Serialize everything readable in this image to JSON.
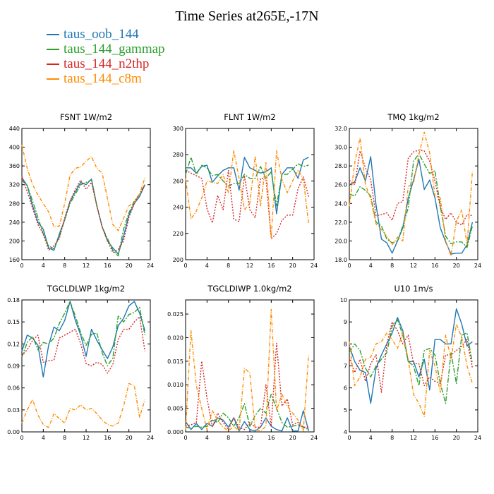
{
  "title": "Time Series at265E,-17N",
  "series_names": [
    "taus_oob_144",
    "taus_144_gammap",
    "taus_144_n2thp",
    "taus_144_c8m"
  ],
  "series_colors": [
    "#1f77b4",
    "#2ca02c",
    "#d62728",
    "#ff8c00"
  ],
  "chart_data": [
    {
      "type": "line",
      "title": "FSNT   1W/m2",
      "x": [
        0,
        1,
        2,
        3,
        4,
        5,
        6,
        7,
        8,
        9,
        10,
        11,
        12,
        13,
        14,
        15,
        16,
        17,
        18,
        19,
        20,
        21,
        22,
        23
      ],
      "xlim": [
        0,
        24
      ],
      "xticks": [
        0,
        4,
        8,
        12,
        16,
        20,
        24
      ],
      "ylim": [
        160,
        440
      ],
      "yticks": [
        160,
        200,
        240,
        280,
        320,
        360,
        400,
        440
      ],
      "ytick_labels": [
        "160",
        "200",
        "240",
        "280",
        "320",
        "360",
        "400",
        "440"
      ],
      "series": [
        {
          "name": "taus_oob_144",
          "values": [
            335,
            318,
            275,
            240,
            225,
            185,
            180,
            215,
            245,
            285,
            305,
            325,
            320,
            332,
            275,
            230,
            200,
            185,
            172,
            210,
            255,
            280,
            295,
            320
          ]
        },
        {
          "name": "taus_144_gammap",
          "values": [
            330,
            318,
            285,
            250,
            215,
            190,
            183,
            210,
            245,
            280,
            300,
            320,
            325,
            330,
            275,
            230,
            205,
            180,
            168,
            225,
            260,
            285,
            300,
            320
          ]
        },
        {
          "name": "taus_144_n2thp",
          "values": [
            338,
            305,
            270,
            235,
            215,
            180,
            190,
            205,
            250,
            285,
            310,
            330,
            310,
            325,
            275,
            230,
            200,
            175,
            182,
            200,
            250,
            280,
            300,
            320
          ]
        },
        {
          "name": "taus_144_c8m",
          "values": [
            405,
            355,
            320,
            298,
            280,
            262,
            230,
            232,
            280,
            340,
            355,
            358,
            370,
            380,
            355,
            345,
            290,
            235,
            222,
            248,
            275,
            282,
            300,
            335
          ]
        }
      ]
    },
    {
      "type": "line",
      "title": "FLNT   1W/m2",
      "x": [
        0,
        1,
        2,
        3,
        4,
        5,
        6,
        7,
        8,
        9,
        10,
        11,
        12,
        13,
        14,
        15,
        16,
        17,
        18,
        19,
        20,
        21,
        22,
        23
      ],
      "xlim": [
        0,
        24
      ],
      "xticks": [
        0,
        4,
        8,
        12,
        16,
        20,
        24
      ],
      "ylim": [
        200,
        300
      ],
      "yticks": [
        200,
        220,
        240,
        260,
        280,
        300
      ],
      "ytick_labels": [
        "200",
        "220",
        "240",
        "260",
        "280",
        "300"
      ],
      "series": [
        {
          "name": "taus_oob_144",
          "values": [
            270,
            270,
            266,
            271,
            272,
            259,
            264,
            268,
            270,
            270,
            253,
            278,
            270,
            268,
            266,
            267,
            270,
            235,
            265,
            270,
            270,
            262,
            276,
            278
          ]
        },
        {
          "name": "taus_144_gammap",
          "values": [
            265,
            278,
            265,
            272,
            270,
            264,
            265,
            260,
            256,
            258,
            258,
            265,
            262,
            262,
            271,
            262,
            267,
            241,
            265,
            265,
            269,
            273,
            271,
            272
          ]
        },
        {
          "name": "taus_144_n2thp",
          "values": [
            268,
            266,
            264,
            262,
            239,
            228,
            249,
            238,
            268,
            231,
            229,
            264,
            238,
            232,
            262,
            262,
            216,
            220,
            230,
            234,
            234,
            254,
            263,
            248
          ]
        },
        {
          "name": "taus_144_c8m",
          "values": [
            262,
            231,
            237,
            247,
            260,
            259,
            258,
            265,
            251,
            283,
            262,
            238,
            243,
            279,
            241,
            274,
            217,
            283,
            261,
            251,
            260,
            268,
            262,
            227
          ]
        }
      ]
    },
    {
      "type": "line",
      "title": "TMQ   1kg/m2",
      "x": [
        0,
        1,
        2,
        3,
        4,
        5,
        6,
        7,
        8,
        9,
        10,
        11,
        12,
        13,
        14,
        15,
        16,
        17,
        18,
        19,
        20,
        21,
        22,
        23
      ],
      "xlim": [
        0,
        24
      ],
      "xticks": [
        0,
        4,
        8,
        12,
        16,
        20,
        24
      ],
      "ylim": [
        18.0,
        32.0
      ],
      "yticks": [
        18,
        20,
        22,
        24,
        26,
        28,
        30,
        32
      ],
      "ytick_labels": [
        "18.0",
        "20.0",
        "22.0",
        "24.0",
        "26.0",
        "28.0",
        "30.0",
        "32.0"
      ],
      "series": [
        {
          "name": "taus_oob_144",
          "values": [
            26.0,
            26.3,
            27.8,
            26.4,
            29.0,
            23.8,
            20.2,
            19.8,
            18.7,
            20.0,
            21.4,
            24.5,
            26.5,
            28.7,
            25.5,
            26.5,
            24.6,
            21.4,
            19.9,
            18.6,
            18.7,
            18.7,
            19.6,
            22.0
          ]
        },
        {
          "name": "taus_144_gammap",
          "values": [
            25.0,
            24.8,
            25.8,
            25.4,
            24.8,
            22.0,
            21.6,
            20.2,
            19.8,
            20.0,
            21.6,
            23.5,
            28.5,
            29.3,
            28.2,
            27.2,
            27.5,
            23.7,
            20.5,
            19.7,
            19.9,
            19.9,
            19.3,
            21.6
          ]
        },
        {
          "name": "taus_144_n2thp",
          "values": [
            26.5,
            26.0,
            29.6,
            27.8,
            26.5,
            22.7,
            22.8,
            23.0,
            22.2,
            24.0,
            24.2,
            28.8,
            29.5,
            29.7,
            29.6,
            28.5,
            26.4,
            23.6,
            22.3,
            23.0,
            22.0,
            21.7,
            22.8,
            22.7
          ]
        },
        {
          "name": "taus_144_c8m",
          "values": [
            23.7,
            28.3,
            31.0,
            26.0,
            24.5,
            21.8,
            21.2,
            20.5,
            19.6,
            20.4,
            20.0,
            25.8,
            26.2,
            29.2,
            31.6,
            29.4,
            24.8,
            24.6,
            20.0,
            18.4,
            22.1,
            23.3,
            19.6,
            27.4
          ]
        }
      ]
    },
    {
      "type": "line",
      "title": "TGCLDLWP   1kg/m2",
      "x": [
        0,
        1,
        2,
        3,
        4,
        5,
        6,
        7,
        8,
        9,
        10,
        11,
        12,
        13,
        14,
        15,
        16,
        17,
        18,
        19,
        20,
        21,
        22,
        23
      ],
      "xlim": [
        0,
        24
      ],
      "xticks": [
        0,
        4,
        8,
        12,
        16,
        20,
        24
      ],
      "ylim": [
        0.0,
        0.18
      ],
      "yticks": [
        0,
        0.03,
        0.06,
        0.09,
        0.12,
        0.15,
        0.18
      ],
      "ytick_labels": [
        "0.00",
        "0.03",
        "0.06",
        "0.09",
        "0.12",
        "0.15",
        "0.18"
      ],
      "series": [
        {
          "name": "taus_oob_144",
          "values": [
            0.11,
            0.132,
            0.128,
            0.118,
            0.075,
            0.118,
            0.143,
            0.138,
            0.152,
            0.178,
            0.152,
            0.132,
            0.103,
            0.14,
            0.125,
            0.112,
            0.1,
            0.116,
            0.145,
            0.155,
            0.172,
            0.178,
            0.162,
            0.138
          ]
        },
        {
          "name": "taus_144_gammap",
          "values": [
            0.102,
            0.122,
            0.13,
            0.112,
            0.122,
            0.12,
            0.128,
            0.148,
            0.162,
            0.178,
            0.158,
            0.135,
            0.118,
            0.133,
            0.135,
            0.108,
            0.09,
            0.101,
            0.158,
            0.15,
            0.16,
            0.163,
            0.17,
            0.132
          ]
        },
        {
          "name": "taus_144_n2thp",
          "values": [
            0.104,
            0.112,
            0.125,
            0.132,
            0.095,
            0.097,
            0.098,
            0.128,
            0.132,
            0.136,
            0.14,
            0.12,
            0.093,
            0.09,
            0.095,
            0.092,
            0.08,
            0.092,
            0.126,
            0.14,
            0.14,
            0.15,
            0.157,
            0.11
          ]
        },
        {
          "name": "taus_144_c8m",
          "values": [
            0.012,
            0.03,
            0.044,
            0.023,
            0.01,
            0.006,
            0.025,
            0.018,
            0.012,
            0.032,
            0.03,
            0.037,
            0.03,
            0.032,
            0.025,
            0.016,
            0.01,
            0.008,
            0.012,
            0.035,
            0.066,
            0.063,
            0.02,
            0.044
          ]
        }
      ]
    },
    {
      "type": "line",
      "title": "TGCLDIWP   1.0kg/m2",
      "x": [
        0,
        1,
        2,
        3,
        4,
        5,
        6,
        7,
        8,
        9,
        10,
        11,
        12,
        13,
        14,
        15,
        16,
        17,
        18,
        19,
        20,
        21,
        22,
        23
      ],
      "xlim": [
        0,
        24
      ],
      "xticks": [
        0,
        4,
        8,
        12,
        16,
        20,
        24
      ],
      "ylim": [
        0.0,
        0.028
      ],
      "yticks": [
        0,
        0.005,
        0.01,
        0.015,
        0.02,
        0.025
      ],
      "ytick_labels": [
        "0.000",
        "0.005",
        "0.010",
        "0.015",
        "0.020",
        "0.025"
      ],
      "series": [
        {
          "name": "taus_oob_144",
          "values": [
            0.0022,
            0.0005,
            0.0018,
            0.0005,
            0.0018,
            0.0012,
            0.003,
            0.0025,
            0.001,
            0.003,
            0.0002,
            0.0022,
            0.0005,
            0.0002,
            0.001,
            0.003,
            0.0012,
            0.0005,
            0.0002,
            0.003,
            0.0002,
            0.0002,
            0.0045,
            0.0002
          ]
        },
        {
          "name": "taus_144_gammap",
          "values": [
            0.001,
            0.0008,
            0.0012,
            0.001,
            0.0012,
            0.0025,
            0.002,
            0.004,
            0.003,
            0.0012,
            0.003,
            0.006,
            0.0012,
            0.0035,
            0.005,
            0.004,
            0.008,
            0.005,
            0.002,
            0.001,
            0.0012,
            0.0015,
            0.001,
            0.0005
          ]
        },
        {
          "name": "taus_144_n2thp",
          "values": [
            0.0012,
            0.0015,
            0.002,
            0.015,
            0.0072,
            0.001,
            0.004,
            0.002,
            0.0005,
            0.003,
            0.001,
            0.0005,
            0.002,
            0.001,
            0.001,
            0.01,
            0.0012,
            0.0188,
            0.0055,
            0.007,
            0.0015,
            0.002,
            0.001,
            0.001
          ]
        },
        {
          "name": "taus_144_c8m",
          "values": [
            0.0005,
            0.0215,
            0.0098,
            0.005,
            0.0005,
            0.0045,
            0.0025,
            0.001,
            0.0002,
            0.0012,
            0.0002,
            0.0135,
            0.0125,
            0.0005,
            0.0002,
            0.0012,
            0.026,
            0.0045,
            0.008,
            0.0055,
            0.004,
            0.0025,
            0.0002,
            0.0165
          ]
        }
      ]
    },
    {
      "type": "line",
      "title": "U10   1m/s",
      "x": [
        0,
        1,
        2,
        3,
        4,
        5,
        6,
        7,
        8,
        9,
        10,
        11,
        12,
        13,
        14,
        15,
        16,
        17,
        18,
        19,
        20,
        21,
        22,
        23
      ],
      "xlim": [
        0,
        24
      ],
      "xticks": [
        0,
        4,
        8,
        12,
        16,
        20,
        24
      ],
      "ylim": [
        4,
        10
      ],
      "yticks": [
        4,
        5,
        6,
        7,
        8,
        9,
        10
      ],
      "ytick_labels": [
        "4",
        "5",
        "6",
        "7",
        "8",
        "9",
        "10"
      ],
      "series": [
        {
          "name": "taus_oob_144",
          "values": [
            7.9,
            7.2,
            6.8,
            6.7,
            5.3,
            6.9,
            7.5,
            8.0,
            8.5,
            9.2,
            8.6,
            7.2,
            7.2,
            6.5,
            7.3,
            5.9,
            8.2,
            8.2,
            8.0,
            8.0,
            9.6,
            8.9,
            7.9,
            8.1
          ]
        },
        {
          "name": "taus_144_gammap",
          "values": [
            7.6,
            8.0,
            7.7,
            6.9,
            6.5,
            7.0,
            7.3,
            7.6,
            8.8,
            9.1,
            8.4,
            7.2,
            7.0,
            6.1,
            7.7,
            7.8,
            7.5,
            6.2,
            5.3,
            7.6,
            6.2,
            8.4,
            8.5,
            7.1
          ]
        },
        {
          "name": "taus_144_n2thp",
          "values": [
            7.4,
            6.7,
            7.3,
            6.3,
            7.1,
            7.5,
            5.8,
            8.0,
            9.0,
            8.6,
            8.0,
            8.4,
            7.1,
            7.1,
            6.1,
            6.5,
            6.3,
            6.2,
            7.5,
            7.5,
            7.7,
            7.9,
            8.2,
            6.9
          ]
        },
        {
          "name": "taus_144_c8m",
          "values": [
            8.1,
            6.1,
            6.5,
            7.3,
            7.4,
            8.0,
            8.1,
            8.5,
            8.2,
            7.8,
            8.5,
            7.3,
            5.7,
            5.3,
            4.7,
            7.7,
            7.0,
            5.8,
            8.4,
            7.3,
            8.9,
            8.3,
            7.0,
            6.2
          ]
        }
      ]
    }
  ]
}
